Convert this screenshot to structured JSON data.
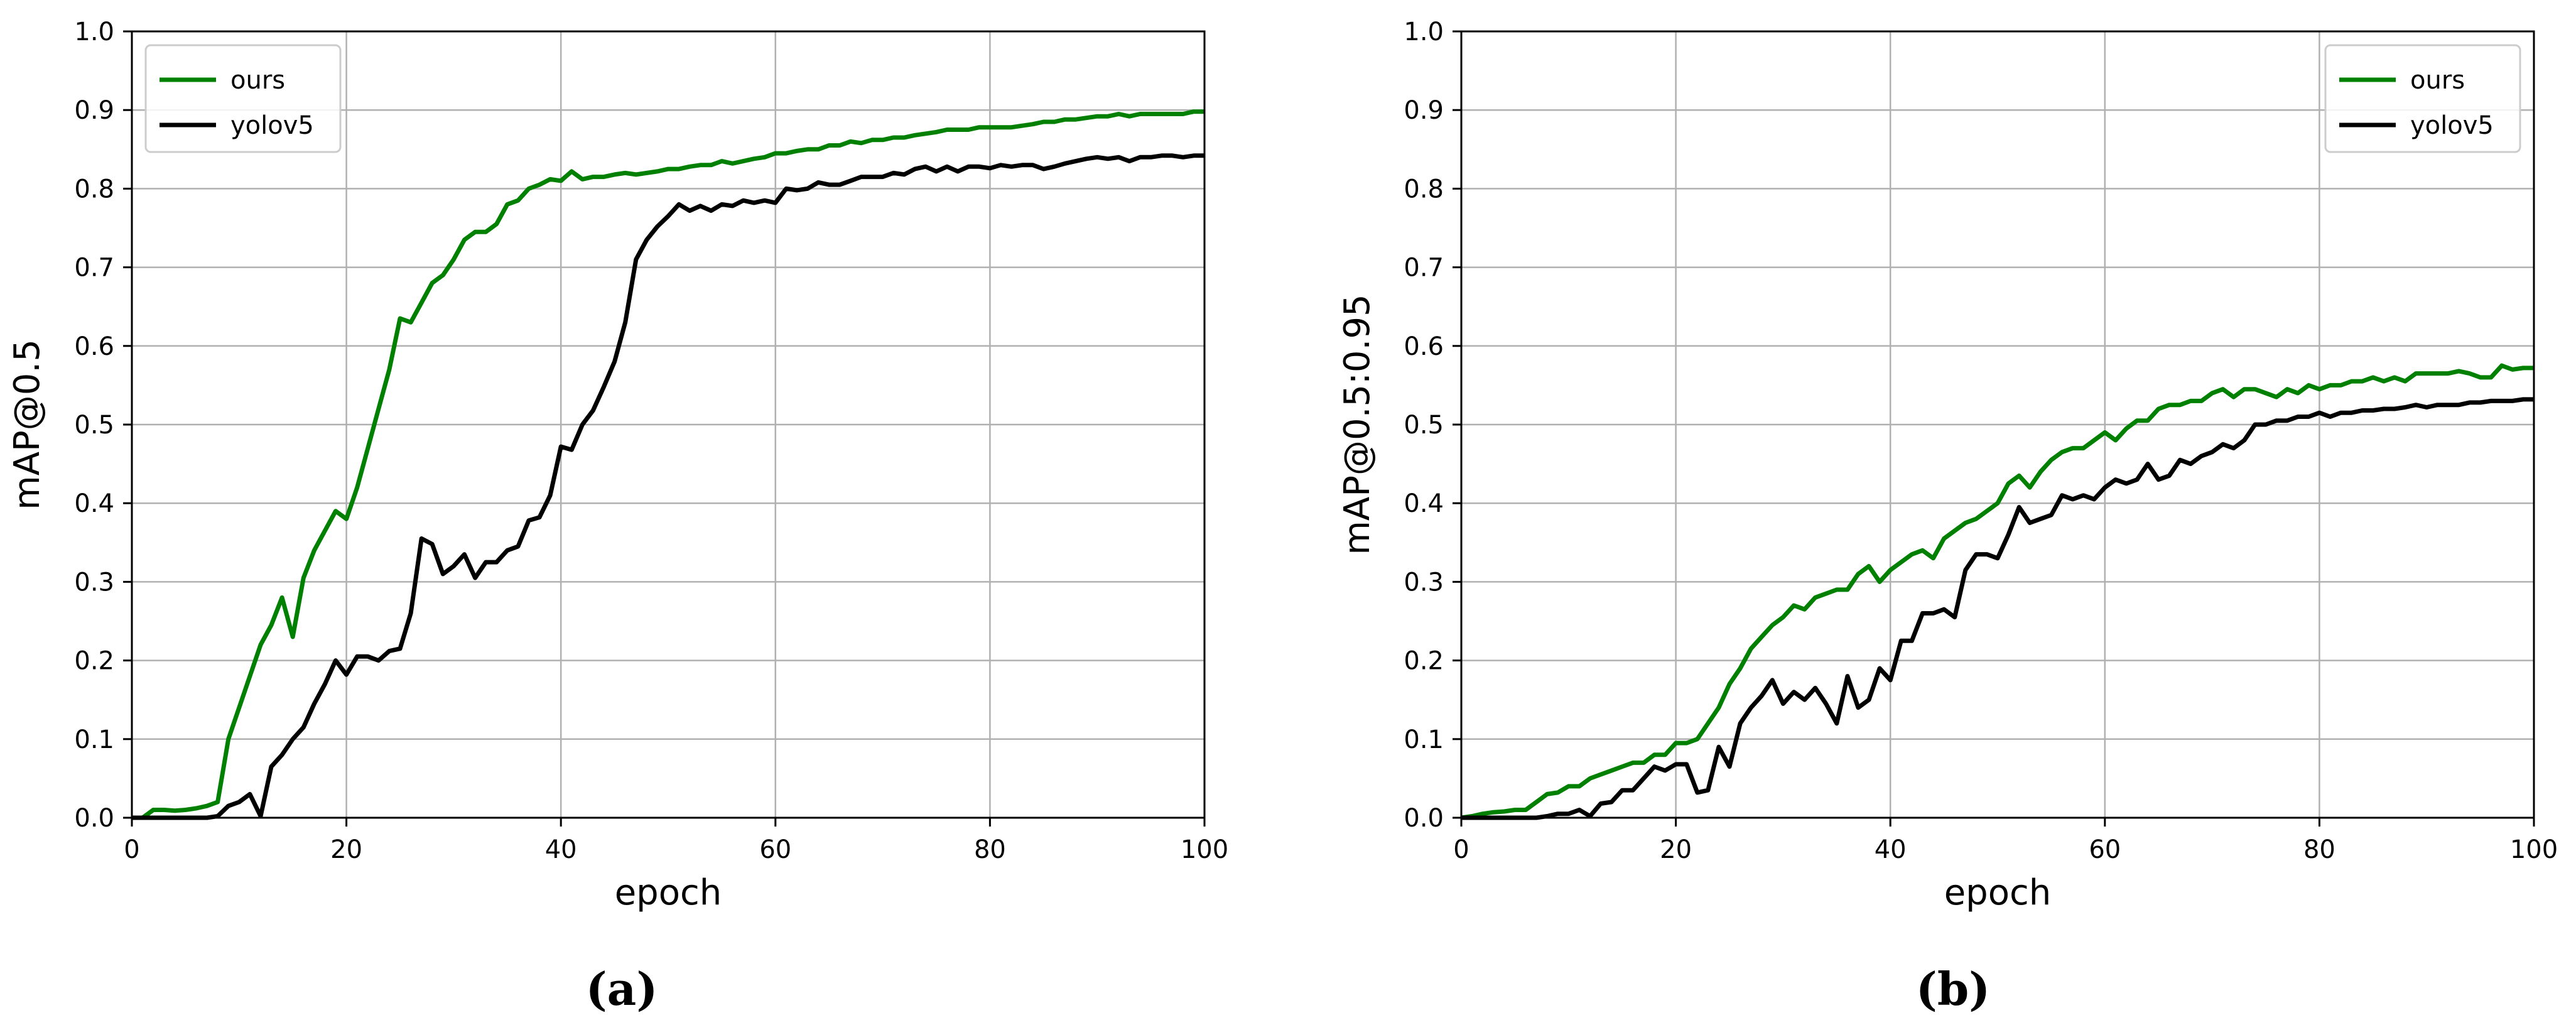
{
  "chart_data": [
    {
      "type": "line",
      "panel_label": "(a)",
      "xlabel": "epoch",
      "ylabel": "mAP@0.5",
      "xlim": [
        0,
        100
      ],
      "ylim": [
        0,
        1.0
      ],
      "xticks": [
        "0",
        "20",
        "40",
        "60",
        "80",
        "100"
      ],
      "yticks": [
        "0.0",
        "0.1",
        "0.2",
        "0.3",
        "0.4",
        "0.5",
        "0.6",
        "0.7",
        "0.8",
        "0.9",
        "1.0"
      ],
      "grid": true,
      "legend_position": "top-left",
      "series": [
        {
          "name": "ours",
          "color": "#008000",
          "x": [
            0,
            1,
            2,
            3,
            4,
            5,
            6,
            7,
            8,
            9,
            10,
            11,
            12,
            13,
            14,
            15,
            16,
            17,
            18,
            19,
            20,
            21,
            22,
            23,
            24,
            25,
            26,
            27,
            28,
            29,
            30,
            31,
            32,
            33,
            34,
            35,
            36,
            37,
            38,
            39,
            40,
            41,
            42,
            43,
            44,
            45,
            46,
            47,
            48,
            49,
            50,
            51,
            52,
            53,
            54,
            55,
            56,
            57,
            58,
            59,
            60,
            61,
            62,
            63,
            64,
            65,
            66,
            67,
            68,
            69,
            70,
            71,
            72,
            73,
            74,
            75,
            76,
            77,
            78,
            79,
            80,
            81,
            82,
            83,
            84,
            85,
            86,
            87,
            88,
            89,
            90,
            91,
            92,
            93,
            94,
            95,
            96,
            97,
            98,
            99,
            100
          ],
          "values": [
            0.0,
            0.0,
            0.01,
            0.01,
            0.009,
            0.01,
            0.012,
            0.015,
            0.02,
            0.1,
            0.14,
            0.18,
            0.22,
            0.245,
            0.28,
            0.23,
            0.305,
            0.34,
            0.365,
            0.39,
            0.38,
            0.42,
            0.47,
            0.52,
            0.57,
            0.635,
            0.63,
            0.655,
            0.68,
            0.69,
            0.71,
            0.735,
            0.745,
            0.745,
            0.755,
            0.78,
            0.785,
            0.8,
            0.805,
            0.812,
            0.81,
            0.822,
            0.812,
            0.815,
            0.815,
            0.818,
            0.82,
            0.818,
            0.82,
            0.822,
            0.825,
            0.825,
            0.828,
            0.83,
            0.83,
            0.835,
            0.832,
            0.835,
            0.838,
            0.84,
            0.845,
            0.845,
            0.848,
            0.85,
            0.85,
            0.855,
            0.855,
            0.86,
            0.858,
            0.862,
            0.862,
            0.865,
            0.865,
            0.868,
            0.87,
            0.872,
            0.875,
            0.875,
            0.875,
            0.878,
            0.878,
            0.878,
            0.878,
            0.88,
            0.882,
            0.885,
            0.885,
            0.888,
            0.888,
            0.89,
            0.892,
            0.892,
            0.895,
            0.892,
            0.895,
            0.895,
            0.895,
            0.895,
            0.895,
            0.898,
            0.898
          ]
        },
        {
          "name": "yolov5",
          "color": "#000000",
          "x": [
            0,
            1,
            2,
            3,
            4,
            5,
            6,
            7,
            8,
            9,
            10,
            11,
            12,
            13,
            14,
            15,
            16,
            17,
            18,
            19,
            20,
            21,
            22,
            23,
            24,
            25,
            26,
            27,
            28,
            29,
            30,
            31,
            32,
            33,
            34,
            35,
            36,
            37,
            38,
            39,
            40,
            41,
            42,
            43,
            44,
            45,
            46,
            47,
            48,
            49,
            50,
            51,
            52,
            53,
            54,
            55,
            56,
            57,
            58,
            59,
            60,
            61,
            62,
            63,
            64,
            65,
            66,
            67,
            68,
            69,
            70,
            71,
            72,
            73,
            74,
            75,
            76,
            77,
            78,
            79,
            80,
            81,
            82,
            83,
            84,
            85,
            86,
            87,
            88,
            89,
            90,
            91,
            92,
            93,
            94,
            95,
            96,
            97,
            98,
            99,
            100
          ],
          "values": [
            0.0,
            0.0,
            0.0,
            0.0,
            0.0,
            0.0,
            0.0,
            0.0,
            0.002,
            0.015,
            0.02,
            0.03,
            0.002,
            0.065,
            0.08,
            0.1,
            0.115,
            0.145,
            0.17,
            0.2,
            0.182,
            0.205,
            0.205,
            0.2,
            0.212,
            0.215,
            0.26,
            0.355,
            0.348,
            0.31,
            0.32,
            0.335,
            0.305,
            0.325,
            0.325,
            0.34,
            0.345,
            0.378,
            0.382,
            0.41,
            0.472,
            0.468,
            0.5,
            0.518,
            0.548,
            0.58,
            0.63,
            0.71,
            0.735,
            0.752,
            0.765,
            0.78,
            0.772,
            0.778,
            0.772,
            0.78,
            0.778,
            0.785,
            0.782,
            0.785,
            0.782,
            0.8,
            0.798,
            0.8,
            0.808,
            0.805,
            0.805,
            0.81,
            0.815,
            0.815,
            0.815,
            0.82,
            0.818,
            0.825,
            0.828,
            0.822,
            0.828,
            0.822,
            0.828,
            0.828,
            0.826,
            0.83,
            0.828,
            0.83,
            0.83,
            0.825,
            0.828,
            0.832,
            0.835,
            0.838,
            0.84,
            0.838,
            0.84,
            0.835,
            0.84,
            0.84,
            0.842,
            0.842,
            0.84,
            0.842,
            0.842
          ]
        }
      ]
    },
    {
      "type": "line",
      "panel_label": "(b)",
      "xlabel": "epoch",
      "ylabel": "mAP@0.5:0.95",
      "xlim": [
        0,
        100
      ],
      "ylim": [
        0,
        1.0
      ],
      "xticks": [
        "0",
        "20",
        "40",
        "60",
        "80",
        "100"
      ],
      "yticks": [
        "0.0",
        "0.1",
        "0.2",
        "0.3",
        "0.4",
        "0.5",
        "0.6",
        "0.7",
        "0.8",
        "0.9",
        "1.0"
      ],
      "grid": true,
      "legend_position": "top-right",
      "series": [
        {
          "name": "ours",
          "color": "#008000",
          "x": [
            0,
            1,
            2,
            3,
            4,
            5,
            6,
            7,
            8,
            9,
            10,
            11,
            12,
            13,
            14,
            15,
            16,
            17,
            18,
            19,
            20,
            21,
            22,
            23,
            24,
            25,
            26,
            27,
            28,
            29,
            30,
            31,
            32,
            33,
            34,
            35,
            36,
            37,
            38,
            39,
            40,
            41,
            42,
            43,
            44,
            45,
            46,
            47,
            48,
            49,
            50,
            51,
            52,
            53,
            54,
            55,
            56,
            57,
            58,
            59,
            60,
            61,
            62,
            63,
            64,
            65,
            66,
            67,
            68,
            69,
            70,
            71,
            72,
            73,
            74,
            75,
            76,
            77,
            78,
            79,
            80,
            81,
            82,
            83,
            84,
            85,
            86,
            87,
            88,
            89,
            90,
            91,
            92,
            93,
            94,
            95,
            96,
            97,
            98,
            99,
            100
          ],
          "values": [
            0.0,
            0.002,
            0.005,
            0.007,
            0.008,
            0.01,
            0.01,
            0.02,
            0.03,
            0.032,
            0.04,
            0.04,
            0.05,
            0.055,
            0.06,
            0.065,
            0.07,
            0.07,
            0.08,
            0.08,
            0.095,
            0.095,
            0.1,
            0.12,
            0.14,
            0.17,
            0.19,
            0.215,
            0.23,
            0.245,
            0.255,
            0.27,
            0.265,
            0.28,
            0.285,
            0.29,
            0.29,
            0.31,
            0.32,
            0.3,
            0.315,
            0.325,
            0.335,
            0.34,
            0.33,
            0.355,
            0.365,
            0.375,
            0.38,
            0.39,
            0.4,
            0.425,
            0.435,
            0.42,
            0.44,
            0.455,
            0.465,
            0.47,
            0.47,
            0.48,
            0.49,
            0.48,
            0.495,
            0.505,
            0.505,
            0.52,
            0.525,
            0.525,
            0.53,
            0.53,
            0.54,
            0.545,
            0.535,
            0.545,
            0.545,
            0.54,
            0.535,
            0.545,
            0.54,
            0.55,
            0.545,
            0.55,
            0.55,
            0.555,
            0.555,
            0.56,
            0.555,
            0.56,
            0.555,
            0.565,
            0.565,
            0.565,
            0.565,
            0.568,
            0.565,
            0.56,
            0.56,
            0.575,
            0.57,
            0.572,
            0.572
          ]
        },
        {
          "name": "yolov5",
          "color": "#000000",
          "x": [
            0,
            1,
            2,
            3,
            4,
            5,
            6,
            7,
            8,
            9,
            10,
            11,
            12,
            13,
            14,
            15,
            16,
            17,
            18,
            19,
            20,
            21,
            22,
            23,
            24,
            25,
            26,
            27,
            28,
            29,
            30,
            31,
            32,
            33,
            34,
            35,
            36,
            37,
            38,
            39,
            40,
            41,
            42,
            43,
            44,
            45,
            46,
            47,
            48,
            49,
            50,
            51,
            52,
            53,
            54,
            55,
            56,
            57,
            58,
            59,
            60,
            61,
            62,
            63,
            64,
            65,
            66,
            67,
            68,
            69,
            70,
            71,
            72,
            73,
            74,
            75,
            76,
            77,
            78,
            79,
            80,
            81,
            82,
            83,
            84,
            85,
            86,
            87,
            88,
            89,
            90,
            91,
            92,
            93,
            94,
            95,
            96,
            97,
            98,
            99,
            100
          ],
          "values": [
            0.0,
            0.0,
            0.0,
            0.0,
            0.0,
            0.0,
            0.0,
            0.0,
            0.002,
            0.005,
            0.005,
            0.01,
            0.002,
            0.018,
            0.02,
            0.035,
            0.035,
            0.05,
            0.065,
            0.06,
            0.068,
            0.068,
            0.032,
            0.035,
            0.09,
            0.065,
            0.12,
            0.14,
            0.155,
            0.175,
            0.145,
            0.16,
            0.15,
            0.165,
            0.145,
            0.12,
            0.18,
            0.14,
            0.15,
            0.19,
            0.175,
            0.225,
            0.225,
            0.26,
            0.26,
            0.265,
            0.255,
            0.315,
            0.335,
            0.335,
            0.33,
            0.36,
            0.395,
            0.375,
            0.38,
            0.385,
            0.41,
            0.405,
            0.41,
            0.405,
            0.42,
            0.43,
            0.425,
            0.43,
            0.45,
            0.43,
            0.435,
            0.455,
            0.45,
            0.46,
            0.465,
            0.475,
            0.47,
            0.48,
            0.5,
            0.5,
            0.505,
            0.505,
            0.51,
            0.51,
            0.515,
            0.51,
            0.515,
            0.515,
            0.518,
            0.518,
            0.52,
            0.52,
            0.522,
            0.525,
            0.522,
            0.525,
            0.525,
            0.525,
            0.528,
            0.528,
            0.53,
            0.53,
            0.53,
            0.532,
            0.532
          ]
        }
      ]
    }
  ]
}
